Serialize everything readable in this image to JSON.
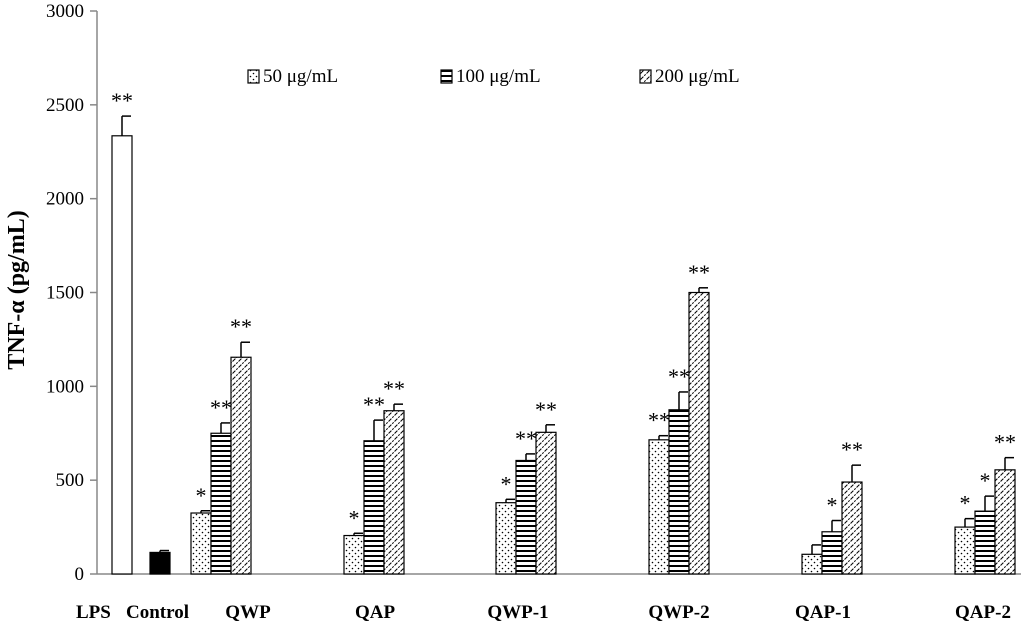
{
  "chart_data": {
    "type": "bar",
    "title": "",
    "xlabel": "",
    "ylabel": "TNF-α (pg/mL)",
    "ylim": [
      0,
      3000
    ],
    "yticks": [
      0,
      500,
      1000,
      1500,
      2000,
      2500,
      3000
    ],
    "legend_position": "top",
    "series": [
      {
        "name": "50 μg/mL",
        "pattern": "dots"
      },
      {
        "name": "100 μg/mL",
        "pattern": "hlines"
      },
      {
        "name": "200 μg/mL",
        "pattern": "diagonal"
      }
    ],
    "lps": {
      "label": "LPS",
      "value": 2335,
      "error": 105,
      "sig": "**"
    },
    "control": {
      "label": "Control",
      "value": 115,
      "error": 10,
      "sig": ""
    },
    "groups": [
      {
        "label": "QWP",
        "values": [
          325,
          750,
          1155
        ],
        "errors": [
          12,
          55,
          80
        ],
        "sig": [
          "*",
          "**",
          "**"
        ]
      },
      {
        "label": "QAP",
        "values": [
          205,
          710,
          870
        ],
        "errors": [
          12,
          110,
          35
        ],
        "sig": [
          "*",
          "**",
          "**"
        ]
      },
      {
        "label": "QWP-1",
        "values": [
          380,
          605,
          755
        ],
        "errors": [
          18,
          35,
          40
        ],
        "sig": [
          "*",
          "**",
          "**"
        ]
      },
      {
        "label": "QWP-2",
        "values": [
          715,
          875,
          1500
        ],
        "errors": [
          22,
          95,
          25
        ],
        "sig": [
          "**",
          "**",
          "**"
        ]
      },
      {
        "label": "QAP-1",
        "values": [
          105,
          225,
          490
        ],
        "errors": [
          50,
          60,
          90
        ],
        "sig": [
          "",
          "*",
          "**"
        ]
      },
      {
        "label": "QAP-2",
        "values": [
          250,
          335,
          555
        ],
        "errors": [
          45,
          80,
          65
        ],
        "sig": [
          "*",
          "*",
          "**"
        ]
      }
    ]
  }
}
